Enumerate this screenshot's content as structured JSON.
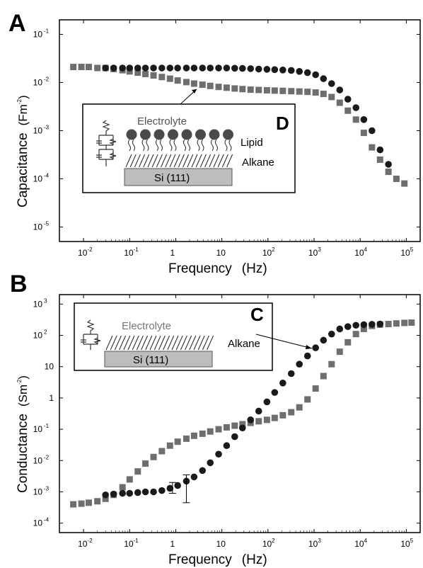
{
  "chart_data": [
    {
      "panel": "A",
      "type": "scatter",
      "xlabel": "Frequency",
      "xlabel_unit": "(Hz)",
      "ylabel": "Capacitance",
      "ylabel_unit": "(Fm",
      "ylabel_exp": "-2",
      "x_scale": "log",
      "y_scale": "log",
      "xlim": [
        0.003,
        200000
      ],
      "ylim": [
        5e-06,
        0.2
      ],
      "x_ticks": [
        {
          "v": 0.01,
          "base": "10",
          "exp": "-2"
        },
        {
          "v": 0.1,
          "base": "10",
          "exp": "-1"
        },
        {
          "v": 1,
          "base": "1",
          "exp": ""
        },
        {
          "v": 10,
          "base": "10",
          "exp": ""
        },
        {
          "v": 100,
          "base": "10",
          "exp": "2"
        },
        {
          "v": 1000,
          "base": "10",
          "exp": "3"
        },
        {
          "v": 10000,
          "base": "10",
          "exp": "4"
        },
        {
          "v": 100000,
          "base": "10",
          "exp": "5"
        }
      ],
      "y_ticks": [
        {
          "v": 0.1,
          "base": "10",
          "exp": "-1"
        },
        {
          "v": 0.01,
          "base": "10",
          "exp": "-2"
        },
        {
          "v": 0.001,
          "base": "10",
          "exp": "-3"
        },
        {
          "v": 0.0001,
          "base": "10",
          "exp": "-4"
        },
        {
          "v": 1e-05,
          "base": "10",
          "exp": "-5"
        }
      ],
      "grid": false,
      "series": [
        {
          "marker": "square",
          "color": "#6e6e6e",
          "points": [
            [
              0.006,
              0.021
            ],
            [
              0.009,
              0.021
            ],
            [
              0.013,
              0.021
            ],
            [
              0.02,
              0.02
            ],
            [
              0.03,
              0.02
            ],
            [
              0.045,
              0.019
            ],
            [
              0.07,
              0.018
            ],
            [
              0.1,
              0.017
            ],
            [
              0.15,
              0.016
            ],
            [
              0.22,
              0.015
            ],
            [
              0.33,
              0.014
            ],
            [
              0.5,
              0.013
            ],
            [
              0.75,
              0.012
            ],
            [
              1.1,
              0.011
            ],
            [
              1.7,
              0.0102
            ],
            [
              2.5,
              0.0095
            ],
            [
              3.8,
              0.009
            ],
            [
              5.6,
              0.0085
            ],
            [
              8.5,
              0.0081
            ],
            [
              12.7,
              0.0078
            ],
            [
              19,
              0.0075
            ],
            [
              28,
              0.0073
            ],
            [
              42,
              0.0071
            ],
            [
              63,
              0.007
            ],
            [
              95,
              0.0069
            ],
            [
              140,
              0.0068
            ],
            [
              210,
              0.0067
            ],
            [
              320,
              0.0066
            ],
            [
              480,
              0.0065
            ],
            [
              720,
              0.0064
            ],
            [
              1080,
              0.0062
            ],
            [
              1600,
              0.0058
            ],
            [
              2400,
              0.005
            ],
            [
              3600,
              0.0038
            ],
            [
              5400,
              0.0026
            ],
            [
              8100,
              0.0017
            ],
            [
              12000,
              0.0009
            ],
            [
              18000,
              0.00045
            ],
            [
              27000,
              0.00025
            ],
            [
              41000,
              0.00014
            ],
            [
              61000,
              0.0001
            ],
            [
              91000,
              8e-05
            ]
          ]
        },
        {
          "marker": "circle",
          "color": "#1a1a1a",
          "points": [
            [
              0.03,
              0.02
            ],
            [
              0.045,
              0.02
            ],
            [
              0.07,
              0.02
            ],
            [
              0.1,
              0.02
            ],
            [
              0.15,
              0.02
            ],
            [
              0.22,
              0.02
            ],
            [
              0.33,
              0.02
            ],
            [
              0.5,
              0.02
            ],
            [
              0.75,
              0.02
            ],
            [
              1.1,
              0.02
            ],
            [
              1.7,
              0.02
            ],
            [
              2.5,
              0.02
            ],
            [
              3.8,
              0.02
            ],
            [
              5.6,
              0.02
            ],
            [
              8.5,
              0.02
            ],
            [
              12.7,
              0.02
            ],
            [
              19,
              0.0198
            ],
            [
              28,
              0.0196
            ],
            [
              42,
              0.0194
            ],
            [
              63,
              0.019
            ],
            [
              95,
              0.0188
            ],
            [
              140,
              0.0185
            ],
            [
              210,
              0.0182
            ],
            [
              320,
              0.0178
            ],
            [
              480,
              0.017
            ],
            [
              720,
              0.016
            ],
            [
              1080,
              0.0145
            ],
            [
              1600,
              0.012
            ],
            [
              2400,
              0.0095
            ],
            [
              3600,
              0.007
            ],
            [
              5400,
              0.0045
            ],
            [
              8100,
              0.003
            ],
            [
              12000,
              0.0017
            ],
            [
              18000,
              0.001
            ],
            [
              27000,
              0.0004
            ],
            [
              41000,
              0.0002
            ]
          ]
        }
      ]
    },
    {
      "panel": "B",
      "type": "scatter",
      "xlabel": "Frequency",
      "xlabel_unit": "(Hz)",
      "ylabel": "Conductance",
      "ylabel_unit": "(Sm",
      "ylabel_exp": "-2",
      "x_scale": "log",
      "y_scale": "log",
      "xlim": [
        0.003,
        200000
      ],
      "ylim": [
        5e-05,
        2000
      ],
      "x_ticks": [
        {
          "v": 0.01,
          "base": "10",
          "exp": "-2"
        },
        {
          "v": 0.1,
          "base": "10",
          "exp": "-1"
        },
        {
          "v": 1,
          "base": "1",
          "exp": ""
        },
        {
          "v": 10,
          "base": "10",
          "exp": ""
        },
        {
          "v": 100,
          "base": "10",
          "exp": "2"
        },
        {
          "v": 1000,
          "base": "10",
          "exp": "3"
        },
        {
          "v": 10000,
          "base": "10",
          "exp": "4"
        },
        {
          "v": 100000,
          "base": "10",
          "exp": "5"
        }
      ],
      "y_ticks": [
        {
          "v": 1000,
          "base": "10",
          "exp": "3"
        },
        {
          "v": 100,
          "base": "10",
          "exp": "2"
        },
        {
          "v": 10,
          "base": "10",
          "exp": ""
        },
        {
          "v": 1,
          "base": "1",
          "exp": ""
        },
        {
          "v": 0.1,
          "base": "10",
          "exp": "-1"
        },
        {
          "v": 0.01,
          "base": "10",
          "exp": "-2"
        },
        {
          "v": 0.001,
          "base": "10",
          "exp": "-3"
        },
        {
          "v": 0.0001,
          "base": "10",
          "exp": "-4"
        }
      ],
      "grid": false,
      "series": [
        {
          "marker": "square",
          "color": "#6e6e6e",
          "points": [
            [
              0.006,
              0.0004
            ],
            [
              0.009,
              0.00042
            ],
            [
              0.013,
              0.00045
            ],
            [
              0.02,
              0.0005
            ],
            [
              0.03,
              0.0006
            ],
            [
              0.045,
              0.0008
            ],
            [
              0.07,
              0.0014
            ],
            [
              0.1,
              0.0025
            ],
            [
              0.15,
              0.0045
            ],
            [
              0.22,
              0.008
            ],
            [
              0.33,
              0.013
            ],
            [
              0.5,
              0.02
            ],
            [
              0.75,
              0.03
            ],
            [
              1.1,
              0.04
            ],
            [
              1.7,
              0.05
            ],
            [
              2.5,
              0.062
            ],
            [
              3.8,
              0.072
            ],
            [
              5.6,
              0.085
            ],
            [
              8.5,
              0.1
            ],
            [
              12.7,
              0.115
            ],
            [
              19,
              0.13
            ],
            [
              28,
              0.145
            ],
            [
              42,
              0.16
            ],
            [
              63,
              0.18
            ],
            [
              95,
              0.2
            ],
            [
              140,
              0.23
            ],
            [
              210,
              0.28
            ],
            [
              320,
              0.35
            ],
            [
              480,
              0.5
            ],
            [
              720,
              0.9
            ],
            [
              1080,
              2
            ],
            [
              1600,
              5
            ],
            [
              2400,
              12
            ],
            [
              3600,
              30
            ],
            [
              5400,
              60
            ],
            [
              8100,
              110
            ],
            [
              12000,
              160
            ],
            [
              18000,
              200
            ],
            [
              27000,
              220
            ],
            [
              41000,
              230
            ],
            [
              61000,
              240
            ],
            [
              91000,
              250
            ],
            [
              130000,
              255
            ]
          ]
        },
        {
          "marker": "circle",
          "color": "#1a1a1a",
          "points": [
            [
              0.03,
              0.0008
            ],
            [
              0.045,
              0.00085
            ],
            [
              0.07,
              0.0009
            ],
            [
              0.1,
              0.0009
            ],
            [
              0.15,
              0.00095
            ],
            [
              0.22,
              0.001
            ],
            [
              0.33,
              0.001
            ],
            [
              0.5,
              0.0011
            ],
            [
              0.75,
              0.0013
            ],
            [
              1.1,
              0.0016
            ],
            [
              1.7,
              0.0022
            ],
            [
              2.5,
              0.003
            ],
            [
              3.8,
              0.0048
            ],
            [
              5.6,
              0.0085
            ],
            [
              8.5,
              0.016
            ],
            [
              12.7,
              0.03
            ],
            [
              19,
              0.058
            ],
            [
              28,
              0.11
            ],
            [
              42,
              0.2
            ],
            [
              63,
              0.38
            ],
            [
              95,
              0.75
            ],
            [
              140,
              1.5
            ],
            [
              210,
              3
            ],
            [
              320,
              6
            ],
            [
              480,
              12
            ],
            [
              720,
              22
            ],
            [
              1080,
              40
            ],
            [
              1600,
              70
            ],
            [
              2400,
              110
            ],
            [
              3600,
              160
            ],
            [
              5400,
              190
            ],
            [
              8100,
              210
            ],
            [
              12000,
              220
            ],
            [
              18000,
              225
            ],
            [
              27000,
              230
            ]
          ]
        }
      ],
      "error_bars": [
        {
          "x": 0.85,
          "y": 0.0014,
          "low": 0.0009,
          "high": 0.002
        },
        {
          "x": 1.7,
          "y": 0.002,
          "low": 0.00045,
          "high": 0.0035
        }
      ]
    }
  ],
  "panel_labels": {
    "a": "A",
    "b": "B"
  },
  "inset_d": {
    "letter": "D",
    "electrolyte": "Electrolyte",
    "lipid": "Lipid",
    "alkane": "Alkane",
    "substrate": "Si (111)"
  },
  "inset_c": {
    "letter": "C",
    "electrolyte": "Electrolyte",
    "alkane": "Alkane",
    "substrate": "Si (111)"
  },
  "colors": {
    "square_series": "#6e6e6e",
    "circle_series": "#1a1a1a",
    "substrate_fill": "#bdbdbd",
    "electrolyte_text": "#777777"
  }
}
